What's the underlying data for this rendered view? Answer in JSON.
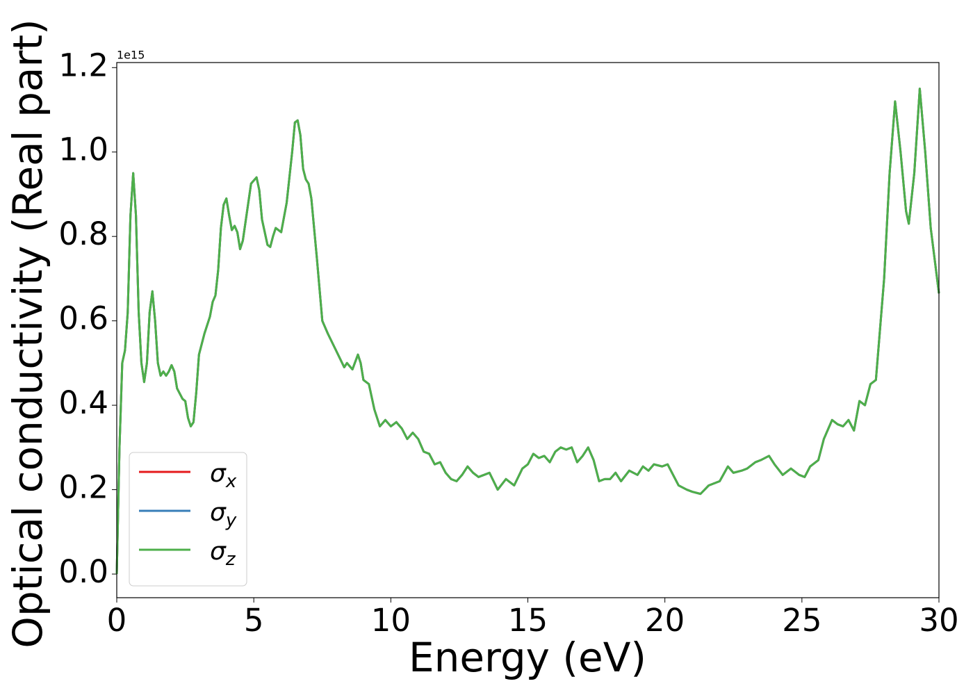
{
  "chart_data": {
    "type": "line",
    "x_label": "Energy (eV)",
    "y_label": "Optical conductivity (Real part)",
    "y_offset_label": "1e15",
    "x": [
      0,
      0.1,
      0.2,
      0.3,
      0.4,
      0.5,
      0.6,
      0.7,
      0.8,
      0.9,
      1.0,
      1.1,
      1.2,
      1.3,
      1.4,
      1.5,
      1.6,
      1.7,
      1.8,
      1.9,
      2.0,
      2.1,
      2.2,
      2.4,
      2.5,
      2.6,
      2.7,
      2.8,
      2.9,
      3.0,
      3.2,
      3.4,
      3.5,
      3.6,
      3.7,
      3.8,
      3.9,
      4.0,
      4.1,
      4.2,
      4.3,
      4.4,
      4.5,
      4.6,
      4.8,
      4.9,
      5.1,
      5.2,
      5.3,
      5.5,
      5.6,
      5.7,
      5.8,
      6.0,
      6.2,
      6.4,
      6.5,
      6.6,
      6.7,
      6.8,
      6.9,
      7.0,
      7.1,
      7.3,
      7.5,
      7.7,
      8.0,
      8.3,
      8.4,
      8.6,
      8.8,
      8.9,
      9.0,
      9.2,
      9.4,
      9.6,
      9.8,
      10.0,
      10.2,
      10.4,
      10.6,
      10.8,
      11.0,
      11.2,
      11.4,
      11.6,
      11.8,
      12.0,
      12.2,
      12.4,
      12.6,
      12.8,
      13.0,
      13.2,
      13.4,
      13.6,
      13.9,
      14.2,
      14.5,
      14.8,
      15.0,
      15.2,
      15.4,
      15.6,
      15.8,
      16.0,
      16.2,
      16.4,
      16.6,
      16.8,
      17.0,
      17.2,
      17.4,
      17.6,
      17.8,
      18.0,
      18.2,
      18.4,
      18.7,
      19.0,
      19.2,
      19.4,
      19.6,
      19.9,
      20.1,
      20.3,
      20.5,
      20.8,
      21.0,
      21.3,
      21.6,
      22.0,
      22.3,
      22.5,
      22.8,
      23.0,
      23.3,
      23.5,
      23.8,
      24.0,
      24.3,
      24.6,
      24.9,
      25.1,
      25.3,
      25.6,
      25.8,
      26.1,
      26.3,
      26.5,
      26.7,
      26.9,
      27.1,
      27.3,
      27.5,
      27.7,
      28.0,
      28.2,
      28.4,
      28.6,
      28.8,
      28.9,
      29.1,
      29.3,
      29.5,
      29.7,
      30.0
    ],
    "series": [
      {
        "name": "σx",
        "color": "#e41a1c",
        "values": [
          0.0,
          0.3,
          0.5,
          0.53,
          0.62,
          0.85,
          0.95,
          0.85,
          0.62,
          0.5,
          0.455,
          0.5,
          0.62,
          0.67,
          0.6,
          0.5,
          0.47,
          0.48,
          0.47,
          0.48,
          0.495,
          0.48,
          0.44,
          0.415,
          0.41,
          0.37,
          0.35,
          0.36,
          0.43,
          0.52,
          0.57,
          0.61,
          0.645,
          0.66,
          0.72,
          0.82,
          0.875,
          0.89,
          0.85,
          0.815,
          0.825,
          0.81,
          0.77,
          0.79,
          0.88,
          0.925,
          0.94,
          0.91,
          0.84,
          0.78,
          0.775,
          0.8,
          0.82,
          0.81,
          0.88,
          1.0,
          1.07,
          1.075,
          1.04,
          0.96,
          0.935,
          0.925,
          0.89,
          0.75,
          0.6,
          0.57,
          0.53,
          0.49,
          0.5,
          0.485,
          0.52,
          0.5,
          0.46,
          0.45,
          0.39,
          0.35,
          0.365,
          0.35,
          0.36,
          0.345,
          0.32,
          0.335,
          0.32,
          0.29,
          0.285,
          0.26,
          0.265,
          0.24,
          0.225,
          0.22,
          0.235,
          0.255,
          0.24,
          0.23,
          0.235,
          0.24,
          0.2,
          0.225,
          0.21,
          0.25,
          0.26,
          0.285,
          0.275,
          0.28,
          0.265,
          0.29,
          0.3,
          0.295,
          0.3,
          0.265,
          0.28,
          0.3,
          0.27,
          0.22,
          0.225,
          0.225,
          0.24,
          0.22,
          0.245,
          0.235,
          0.255,
          0.245,
          0.26,
          0.255,
          0.26,
          0.235,
          0.21,
          0.2,
          0.195,
          0.19,
          0.21,
          0.22,
          0.255,
          0.24,
          0.245,
          0.25,
          0.265,
          0.27,
          0.28,
          0.26,
          0.235,
          0.25,
          0.235,
          0.23,
          0.255,
          0.27,
          0.32,
          0.365,
          0.355,
          0.35,
          0.365,
          0.34,
          0.41,
          0.4,
          0.45,
          0.46,
          0.7,
          0.95,
          1.12,
          1.0,
          0.86,
          0.83,
          0.95,
          1.15,
          1.0,
          0.82,
          0.665
        ]
      },
      {
        "name": "σy",
        "color": "#377eb8",
        "values": [
          0.0,
          0.3,
          0.5,
          0.53,
          0.62,
          0.85,
          0.95,
          0.85,
          0.62,
          0.5,
          0.455,
          0.5,
          0.62,
          0.67,
          0.6,
          0.5,
          0.47,
          0.48,
          0.47,
          0.48,
          0.495,
          0.48,
          0.44,
          0.415,
          0.41,
          0.37,
          0.35,
          0.36,
          0.43,
          0.52,
          0.57,
          0.61,
          0.645,
          0.66,
          0.72,
          0.82,
          0.875,
          0.89,
          0.85,
          0.815,
          0.825,
          0.81,
          0.77,
          0.79,
          0.88,
          0.925,
          0.94,
          0.91,
          0.84,
          0.78,
          0.775,
          0.8,
          0.82,
          0.81,
          0.88,
          1.0,
          1.07,
          1.075,
          1.04,
          0.96,
          0.935,
          0.925,
          0.89,
          0.75,
          0.6,
          0.57,
          0.53,
          0.49,
          0.5,
          0.485,
          0.52,
          0.5,
          0.46,
          0.45,
          0.39,
          0.35,
          0.365,
          0.35,
          0.36,
          0.345,
          0.32,
          0.335,
          0.32,
          0.29,
          0.285,
          0.26,
          0.265,
          0.24,
          0.225,
          0.22,
          0.235,
          0.255,
          0.24,
          0.23,
          0.235,
          0.24,
          0.2,
          0.225,
          0.21,
          0.25,
          0.26,
          0.285,
          0.275,
          0.28,
          0.265,
          0.29,
          0.3,
          0.295,
          0.3,
          0.265,
          0.28,
          0.3,
          0.27,
          0.22,
          0.225,
          0.225,
          0.24,
          0.22,
          0.245,
          0.235,
          0.255,
          0.245,
          0.26,
          0.255,
          0.26,
          0.235,
          0.21,
          0.2,
          0.195,
          0.19,
          0.21,
          0.22,
          0.255,
          0.24,
          0.245,
          0.25,
          0.265,
          0.27,
          0.28,
          0.26,
          0.235,
          0.25,
          0.235,
          0.23,
          0.255,
          0.27,
          0.32,
          0.365,
          0.355,
          0.35,
          0.365,
          0.34,
          0.41,
          0.4,
          0.45,
          0.46,
          0.7,
          0.95,
          1.12,
          1.0,
          0.86,
          0.83,
          0.95,
          1.15,
          1.0,
          0.82,
          0.665
        ]
      },
      {
        "name": "σz",
        "color": "#4daf4a",
        "values": [
          0.0,
          0.3,
          0.5,
          0.53,
          0.62,
          0.85,
          0.95,
          0.85,
          0.62,
          0.5,
          0.455,
          0.5,
          0.62,
          0.67,
          0.6,
          0.5,
          0.47,
          0.48,
          0.47,
          0.48,
          0.495,
          0.48,
          0.44,
          0.415,
          0.41,
          0.37,
          0.35,
          0.36,
          0.43,
          0.52,
          0.57,
          0.61,
          0.645,
          0.66,
          0.72,
          0.82,
          0.875,
          0.89,
          0.85,
          0.815,
          0.825,
          0.81,
          0.77,
          0.79,
          0.88,
          0.925,
          0.94,
          0.91,
          0.84,
          0.78,
          0.775,
          0.8,
          0.82,
          0.81,
          0.88,
          1.0,
          1.07,
          1.075,
          1.04,
          0.96,
          0.935,
          0.925,
          0.89,
          0.75,
          0.6,
          0.57,
          0.53,
          0.49,
          0.5,
          0.485,
          0.52,
          0.5,
          0.46,
          0.45,
          0.39,
          0.35,
          0.365,
          0.35,
          0.36,
          0.345,
          0.32,
          0.335,
          0.32,
          0.29,
          0.285,
          0.26,
          0.265,
          0.24,
          0.225,
          0.22,
          0.235,
          0.255,
          0.24,
          0.23,
          0.235,
          0.24,
          0.2,
          0.225,
          0.21,
          0.25,
          0.26,
          0.285,
          0.275,
          0.28,
          0.265,
          0.29,
          0.3,
          0.295,
          0.3,
          0.265,
          0.28,
          0.3,
          0.27,
          0.22,
          0.225,
          0.225,
          0.24,
          0.22,
          0.245,
          0.235,
          0.255,
          0.245,
          0.26,
          0.255,
          0.26,
          0.235,
          0.21,
          0.2,
          0.195,
          0.19,
          0.21,
          0.22,
          0.255,
          0.24,
          0.245,
          0.25,
          0.265,
          0.27,
          0.28,
          0.26,
          0.235,
          0.25,
          0.235,
          0.23,
          0.255,
          0.27,
          0.32,
          0.365,
          0.355,
          0.35,
          0.365,
          0.34,
          0.41,
          0.4,
          0.45,
          0.46,
          0.7,
          0.95,
          1.12,
          1.0,
          0.86,
          0.83,
          0.95,
          1.15,
          1.0,
          0.82,
          0.665
        ]
      }
    ],
    "xlim": [
      0,
      30
    ],
    "xticks": [
      0,
      5,
      10,
      15,
      20,
      25,
      30
    ],
    "ylim": [
      -0.056,
      1.212
    ],
    "yticks": [
      {
        "value": 0,
        "label": "0.0"
      },
      0.2,
      0.4,
      0.6,
      0.8,
      {
        "value": 1,
        "label": "1.0"
      },
      1.2
    ],
    "grid": false,
    "legend": "lower left"
  }
}
